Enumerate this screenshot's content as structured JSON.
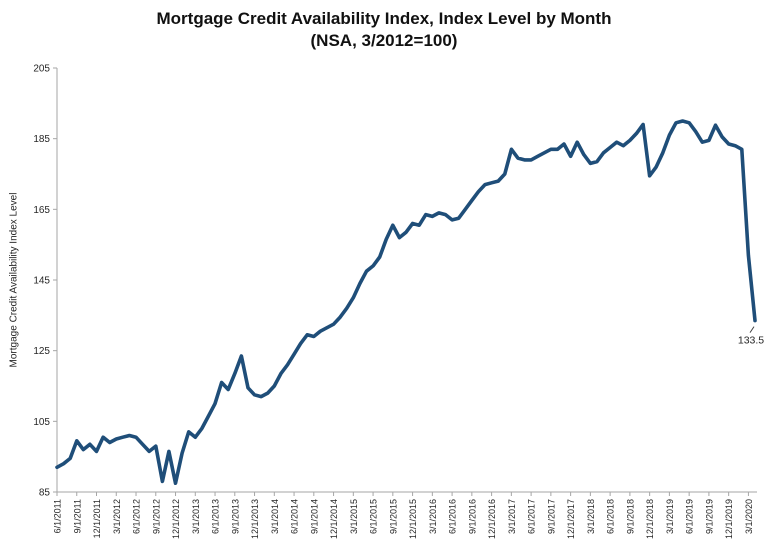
{
  "header": {
    "title_line1": "Mortgage Credit Availability Index, Index Level by Month",
    "title_line2": "(NSA, 3/2012=100)"
  },
  "chart_data": {
    "type": "line",
    "title": "Mortgage Credit Availability Index, Index Level by Month",
    "subtitle": "(NSA, 3/2012=100)",
    "ylabel": "Mortgage Credit Availability Index Level",
    "ylim": [
      85,
      205
    ],
    "yticks": [
      85,
      105,
      125,
      145,
      165,
      185,
      205
    ],
    "grid": false,
    "legend": false,
    "frequency": "monthly",
    "x_tick_every_n_points": 3,
    "x_tick_labels": [
      "6/1/2011",
      "9/1/2011",
      "12/1/2011",
      "3/1/2012",
      "6/1/2012",
      "9/1/2012",
      "12/1/2012",
      "3/1/2013",
      "6/1/2013",
      "9/1/2013",
      "12/1/2013",
      "3/1/2014",
      "6/1/2014",
      "9/1/2014",
      "12/1/2014",
      "3/1/2015",
      "6/1/2015",
      "9/1/2015",
      "12/1/2015",
      "3/1/2016",
      "6/1/2016",
      "9/1/2016",
      "12/1/2016",
      "3/1/2017",
      "6/1/2017",
      "9/1/2017",
      "12/1/2017",
      "3/1/2018",
      "6/1/2018",
      "9/1/2018",
      "12/1/2018",
      "3/1/2019",
      "6/1/2019",
      "9/1/2019",
      "12/1/2019",
      "3/1/2020"
    ],
    "series": [
      {
        "name": "Mortgage Credit Availability Index (NSA)",
        "color": "#1F4E79",
        "values": [
          92.0,
          93.0,
          94.5,
          99.5,
          97.0,
          98.5,
          96.5,
          100.5,
          99.0,
          100.0,
          100.5,
          101.0,
          100.5,
          98.5,
          96.5,
          98.0,
          88.0,
          96.5,
          87.5,
          96.0,
          102.0,
          100.5,
          103.0,
          106.5,
          110.0,
          116.0,
          114.0,
          118.5,
          123.5,
          114.5,
          112.5,
          112.0,
          113.0,
          115.0,
          118.5,
          121.0,
          124.0,
          127.0,
          129.5,
          129.0,
          130.5,
          131.5,
          132.5,
          134.5,
          137.0,
          140.0,
          144.0,
          147.5,
          149.0,
          151.5,
          156.5,
          160.5,
          157.0,
          158.5,
          161.0,
          160.5,
          163.5,
          163.0,
          164.0,
          163.5,
          162.0,
          162.5,
          165.0,
          167.5,
          170.0,
          172.0,
          172.5,
          173.0,
          175.0,
          182.0,
          179.5,
          179.0,
          179.0,
          180.0,
          181.0,
          182.0,
          182.0,
          183.5,
          180.0,
          184.0,
          180.5,
          178.0,
          178.5,
          181.0,
          182.5,
          184.0,
          183.0,
          184.5,
          186.5,
          189.0,
          174.5,
          177.0,
          181.0,
          186.0,
          189.5,
          190.0,
          189.5,
          187.0,
          184.0,
          184.5,
          188.8,
          185.5,
          183.5,
          183.0,
          182.0,
          152.0,
          133.5
        ]
      }
    ],
    "last_point_label": "133.5",
    "axis_color": "#A6A6A6",
    "tick_label_color": "#262626"
  }
}
